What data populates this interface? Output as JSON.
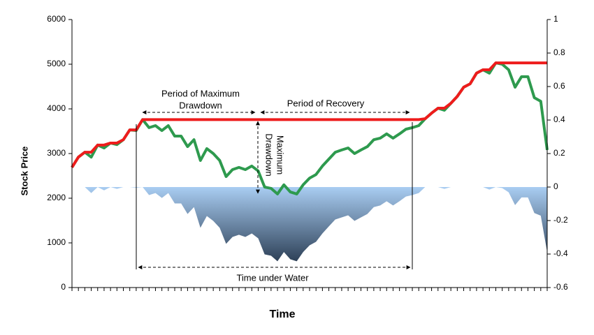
{
  "chart_data": {
    "type": "line",
    "ylabel": "Stock Price",
    "xlabel": "Time",
    "categories": [
      null,
      null,
      null,
      null,
      null,
      null,
      null,
      null,
      null,
      null,
      null,
      null,
      null,
      null,
      null,
      null,
      null,
      null,
      null,
      null,
      null,
      null,
      null,
      null,
      null,
      null,
      null,
      null,
      null,
      null,
      null,
      null,
      null,
      null,
      null,
      null,
      null,
      null,
      null,
      null,
      null,
      null,
      null,
      null,
      null,
      null,
      null,
      null,
      null,
      null,
      null,
      null,
      null,
      null,
      null,
      null,
      null,
      null,
      null,
      null,
      null,
      null,
      null,
      null,
      null,
      null,
      null,
      null,
      null,
      null,
      null,
      null,
      null,
      null,
      null
    ],
    "ylim": [
      0,
      6000
    ],
    "yticks": [
      0,
      1000,
      2000,
      3000,
      4000,
      5000,
      6000
    ],
    "y2lim": [
      -0.6,
      1
    ],
    "y2ticks": [
      -0.6,
      -0.4,
      -0.2,
      0,
      0.2,
      0.4,
      0.6,
      0.8,
      1
    ],
    "series": [
      {
        "kind": "area",
        "axis": "y2",
        "color": "#a9cdf2",
        "color2": "#2e4158",
        "values": [
          0,
          0,
          0,
          -0.036,
          0,
          -0.02,
          0,
          -0.011,
          0,
          0,
          -0.004,
          0,
          -0.048,
          -0.036,
          -0.065,
          -0.036,
          -0.098,
          -0.098,
          -0.161,
          -0.12,
          -0.243,
          -0.173,
          -0.202,
          -0.243,
          -0.339,
          -0.298,
          -0.285,
          -0.298,
          -0.277,
          -0.306,
          -0.402,
          -0.41,
          -0.443,
          -0.388,
          -0.431,
          -0.443,
          -0.388,
          -0.348,
          -0.327,
          -0.277,
          -0.235,
          -0.194,
          -0.181,
          -0.169,
          -0.202,
          -0.181,
          -0.161,
          -0.12,
          -0.11,
          -0.085,
          -0.11,
          -0.085,
          -0.057,
          -0.048,
          -0.036,
          0,
          0,
          0,
          -0.011,
          0,
          0,
          0,
          0,
          0,
          0,
          -0.015,
          0,
          -0.006,
          -0.031,
          -0.108,
          -0.062,
          -0.062,
          -0.155,
          -0.171,
          -0.388
        ]
      },
      {
        "kind": "line",
        "color": "#2e9a4e",
        "values": [
          2690,
          2920,
          3030,
          2920,
          3190,
          3125,
          3235,
          3200,
          3310,
          3530,
          3515,
          3760,
          3580,
          3625,
          3515,
          3625,
          3390,
          3390,
          3155,
          3310,
          2845,
          3110,
          3000,
          2845,
          2485,
          2640,
          2690,
          2640,
          2720,
          2610,
          2250,
          2220,
          2095,
          2300,
          2140,
          2095,
          2300,
          2450,
          2530,
          2720,
          2875,
          3030,
          3080,
          3125,
          3000,
          3080,
          3155,
          3310,
          3345,
          3440,
          3345,
          3440,
          3545,
          3580,
          3625,
          3780,
          3905,
          4015,
          3970,
          4125,
          4280,
          4485,
          4560,
          4800,
          4875,
          4800,
          5030,
          5000,
          4875,
          4485,
          4720,
          4720,
          4250,
          4170,
          3080
        ]
      },
      {
        "kind": "line",
        "color": "#ee1c1c",
        "values": [
          2690,
          2920,
          3030,
          3030,
          3190,
          3190,
          3235,
          3235,
          3310,
          3530,
          3530,
          3760,
          3760,
          3760,
          3760,
          3760,
          3760,
          3760,
          3760,
          3760,
          3760,
          3760,
          3760,
          3760,
          3760,
          3760,
          3760,
          3760,
          3760,
          3760,
          3760,
          3760,
          3760,
          3760,
          3760,
          3760,
          3760,
          3760,
          3760,
          3760,
          3760,
          3760,
          3760,
          3760,
          3760,
          3760,
          3760,
          3760,
          3760,
          3760,
          3760,
          3760,
          3760,
          3760,
          3760,
          3780,
          3905,
          4015,
          4015,
          4125,
          4280,
          4485,
          4560,
          4800,
          4875,
          4875,
          5030,
          5030,
          5030,
          5030,
          5030,
          5030,
          5030,
          5030,
          5030
        ]
      }
    ],
    "annotations": {
      "period_max_drawdown": [
        "Period of Maximum",
        "Drawdown"
      ],
      "period_recovery": "Period of Recovery",
      "max_drawdown": [
        "Maximum",
        "Drawdown"
      ],
      "time_under_water": "Time under Water"
    }
  }
}
